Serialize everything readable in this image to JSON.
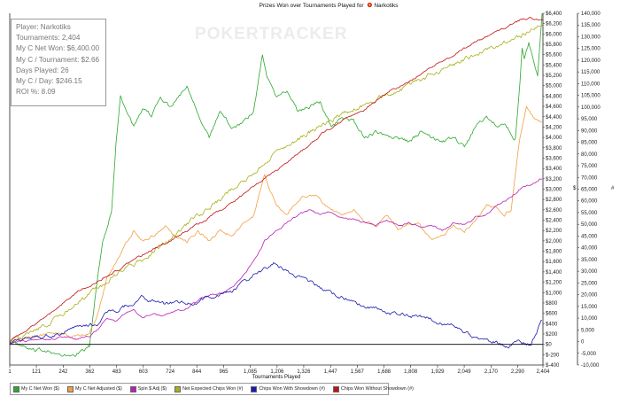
{
  "chart_data": {
    "type": "line",
    "title": "Prizes Won over Tournaments Played for",
    "player_name": "Narkotiks",
    "xlabel": "Tournaments Played",
    "x_ticks": [
      1,
      121,
      242,
      362,
      483,
      603,
      724,
      844,
      965,
      1085,
      1206,
      1326,
      1447,
      1567,
      1688,
      1808,
      1929,
      2049,
      2170,
      2290,
      2404
    ],
    "x_tick_labels": [
      "1",
      "121",
      "242",
      "362",
      "483",
      "603",
      "724",
      "844",
      "965",
      "1,085",
      "1,206",
      "1,326",
      "1,447",
      "1,567",
      "1,688",
      "1,808",
      "1,929",
      "2,049",
      "2,170",
      "2,290",
      "2,404"
    ],
    "xlim": [
      1,
      2404
    ],
    "left_axis": {
      "ylim": [
        -400,
        6400
      ],
      "ticks": [
        -400,
        -200,
        0,
        200,
        400,
        600,
        800,
        1000,
        1200,
        1400,
        1600,
        1800,
        2000,
        2200,
        2400,
        2600,
        2800,
        3000,
        3200,
        3400,
        3600,
        3800,
        4000,
        4200,
        4400,
        4600,
        4800,
        5000,
        5200,
        5400,
        5600,
        5800,
        6000,
        6200,
        6400
      ],
      "tick_labels": [
        "$-400",
        "$-200",
        "$0",
        "$200",
        "$400",
        "$600",
        "$800",
        "$1,000",
        "$1,200",
        "$1,400",
        "$1,600",
        "$1,800",
        "$2,000",
        "$2,200",
        "$2,400",
        "$2,600",
        "$2,800",
        "$3,000",
        "$3,200",
        "$3,400",
        "$3,600",
        "$3,800",
        "$4,000",
        "$4,200",
        "$4,400",
        "$4,600",
        "$4,800",
        "$5,000",
        "$5,200",
        "$5,400",
        "$5,600",
        "$5,800",
        "$6,000",
        "$6,200",
        "$6,400"
      ],
      "label": "$"
    },
    "right_axis": {
      "ylim": [
        -10000,
        140000
      ],
      "ticks": [
        -10000,
        -5000,
        0,
        5000,
        10000,
        15000,
        20000,
        25000,
        30000,
        35000,
        40000,
        45000,
        50000,
        55000,
        60000,
        65000,
        70000,
        75000,
        80000,
        85000,
        90000,
        95000,
        100000,
        105000,
        110000,
        115000,
        120000,
        125000,
        130000,
        135000,
        140000
      ],
      "tick_labels": [
        "-10,000",
        "-5,000",
        "0",
        "5,000",
        "10,000",
        "15,000",
        "20,000",
        "25,000",
        "30,000",
        "35,000",
        "40,000",
        "45,000",
        "50,000",
        "55,000",
        "60,000",
        "65,000",
        "70,000",
        "75,000",
        "80,000",
        "85,000",
        "90,000",
        "95,000",
        "100,000",
        "105,000",
        "110,000",
        "115,000",
        "120,000",
        "125,000",
        "130,000",
        "135,000",
        "140,000"
      ],
      "label": "#"
    },
    "grid": false,
    "legend_position": "bottom",
    "series": [
      {
        "name": "My C Net Won ($)",
        "axis": "left",
        "color": "#2ca82c",
        "noise": 60,
        "x": [
          1,
          60,
          120,
          180,
          240,
          300,
          360,
          400,
          420,
          440,
          460,
          480,
          500,
          530,
          560,
          600,
          640,
          680,
          720,
          760,
          800,
          850,
          900,
          950,
          1000,
          1050,
          1100,
          1140,
          1160,
          1200,
          1250,
          1300,
          1350,
          1400,
          1450,
          1500,
          1550,
          1600,
          1650,
          1700,
          1750,
          1800,
          1850,
          1900,
          1950,
          2000,
          2050,
          2100,
          2150,
          2200,
          2220,
          2240,
          2260,
          2270,
          2280,
          2300,
          2310,
          2320,
          2340,
          2360,
          2380,
          2400
        ],
        "y": [
          50,
          -50,
          -150,
          -100,
          -250,
          -200,
          -50,
          1400,
          2000,
          2300,
          2600,
          3900,
          4800,
          4500,
          4200,
          4500,
          4400,
          4800,
          4600,
          4800,
          5000,
          4500,
          4000,
          4500,
          4200,
          4300,
          4500,
          5600,
          5200,
          4800,
          4900,
          4500,
          4600,
          4700,
          4200,
          4400,
          4300,
          4000,
          4100,
          4000,
          4000,
          3900,
          4100,
          4000,
          3900,
          4000,
          3800,
          4200,
          4400,
          4200,
          4300,
          4200,
          4100,
          4000,
          4000,
          5000,
          5700,
          5500,
          5800,
          5500,
          5200,
          6400
        ]
      },
      {
        "name": "My C Net Adjusted ($)",
        "axis": "left",
        "color": "#f0a040",
        "noise": 45,
        "x": [
          1,
          60,
          120,
          180,
          240,
          300,
          360,
          400,
          440,
          480,
          520,
          560,
          600,
          650,
          700,
          750,
          800,
          850,
          900,
          950,
          1000,
          1050,
          1100,
          1150,
          1200,
          1250,
          1300,
          1350,
          1400,
          1450,
          1500,
          1550,
          1600,
          1650,
          1700,
          1750,
          1800,
          1850,
          1900,
          1950,
          2000,
          2050,
          2100,
          2150,
          2200,
          2230,
          2260,
          2300,
          2330,
          2360,
          2400
        ],
        "y": [
          50,
          100,
          150,
          250,
          200,
          150,
          200,
          600,
          1300,
          1600,
          1900,
          2200,
          2000,
          2100,
          2300,
          2100,
          2000,
          2200,
          2000,
          2200,
          2100,
          2300,
          2500,
          3300,
          2700,
          2500,
          2800,
          2900,
          2800,
          2600,
          2500,
          2600,
          2400,
          2300,
          2500,
          2200,
          2300,
          2300,
          2000,
          2100,
          2300,
          2200,
          2400,
          2700,
          2600,
          2500,
          2600,
          4000,
          4600,
          4400,
          4300
        ]
      },
      {
        "name": "Spin $ Adj ($)",
        "axis": "left",
        "color": "#b81fb8",
        "noise": 30,
        "x": [
          1,
          60,
          120,
          180,
          240,
          300,
          360,
          400,
          440,
          480,
          520,
          560,
          600,
          650,
          700,
          750,
          800,
          850,
          900,
          950,
          1000,
          1050,
          1100,
          1150,
          1200,
          1250,
          1300,
          1350,
          1400,
          1450,
          1500,
          1550,
          1600,
          1650,
          1700,
          1750,
          1800,
          1850,
          1900,
          1950,
          2000,
          2050,
          2100,
          2150,
          2200,
          2250,
          2300,
          2350,
          2400
        ],
        "y": [
          10,
          60,
          80,
          100,
          150,
          100,
          150,
          300,
          500,
          450,
          600,
          700,
          500,
          600,
          550,
          650,
          700,
          850,
          950,
          1000,
          1100,
          1300,
          1600,
          2000,
          2200,
          2350,
          2500,
          2600,
          2500,
          2550,
          2450,
          2400,
          2350,
          2300,
          2400,
          2300,
          2350,
          2250,
          2300,
          2200,
          2350,
          2300,
          2450,
          2500,
          2700,
          2800,
          3000,
          3100,
          3200
        ]
      },
      {
        "name": "Net Expected Chips Won (#)",
        "axis": "right",
        "color": "#a8b016",
        "noise": 1500,
        "x": [
          1,
          100,
          200,
          300,
          400,
          500,
          600,
          700,
          800,
          900,
          1000,
          1100,
          1200,
          1300,
          1400,
          1500,
          1600,
          1700,
          1800,
          1900,
          2000,
          2100,
          2200,
          2300,
          2350,
          2404
        ],
        "y": [
          0,
          4000,
          9000,
          16000,
          23000,
          30000,
          35000,
          42000,
          50000,
          57000,
          65000,
          72000,
          80000,
          86000,
          92000,
          97000,
          101000,
          105000,
          109000,
          114000,
          118000,
          123000,
          126000,
          130000,
          133000,
          135000
        ]
      },
      {
        "name": "Chips Won With Showdown (#)",
        "axis": "right",
        "color": "#1a1ab0",
        "noise": 1300,
        "x": [
          1,
          50,
          100,
          150,
          200,
          250,
          300,
          350,
          400,
          440,
          480,
          520,
          560,
          600,
          650,
          700,
          750,
          800,
          850,
          900,
          950,
          1000,
          1050,
          1100,
          1150,
          1200,
          1250,
          1300,
          1350,
          1400,
          1450,
          1500,
          1550,
          1600,
          1650,
          1700,
          1750,
          1800,
          1850,
          1900,
          1950,
          2000,
          2050,
          2100,
          2150,
          2200,
          2250,
          2300,
          2350,
          2400
        ],
        "y": [
          0,
          1000,
          1500,
          2000,
          2500,
          4500,
          6000,
          7000,
          7500,
          12000,
          13000,
          15000,
          16000,
          19000,
          17000,
          16000,
          17000,
          16000,
          17000,
          19000,
          20000,
          21000,
          25000,
          28000,
          31000,
          34000,
          30000,
          28000,
          25000,
          23000,
          21000,
          19000,
          17000,
          15000,
          14000,
          12500,
          12000,
          11000,
          10500,
          9500,
          8000,
          7000,
          4500,
          2000,
          1000,
          -500,
          -2000,
          0,
          -1500,
          9000
        ]
      },
      {
        "name": "Chips Won Without Showdown (#)",
        "axis": "right",
        "color": "#c21212",
        "noise": 700,
        "x": [
          1,
          100,
          200,
          300,
          400,
          500,
          600,
          700,
          800,
          900,
          1000,
          1100,
          1200,
          1300,
          1400,
          1500,
          1600,
          1700,
          1800,
          1900,
          2000,
          2100,
          2200,
          2300,
          2350,
          2404
        ],
        "y": [
          0,
          6500,
          13000,
          21000,
          26000,
          31000,
          37000,
          42000,
          47000,
          53000,
          59000,
          66000,
          73000,
          80000,
          88000,
          94000,
          99000,
          106000,
          111000,
          117000,
          122000,
          128000,
          132000,
          137000,
          138000,
          137000
        ]
      }
    ]
  },
  "stats_box": {
    "lines": [
      "Player: Narkotiks",
      "Tournaments: 2,404",
      "My C Net Won: $6,400.00",
      "My C / Tournament: $2.66",
      "Days Played: 26",
      "My C / Day: $246.15",
      "ROI %: 8.09"
    ]
  },
  "watermark": "POKERTRACKER",
  "colors": {
    "axis": "#222222",
    "zero_line": "#000000"
  }
}
